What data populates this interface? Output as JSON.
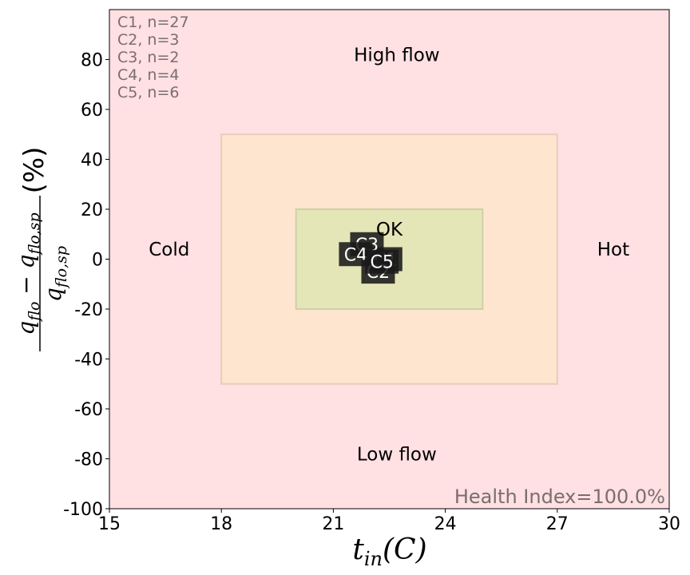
{
  "chart_data": {
    "type": "scatter",
    "xlabel": "t_in(C)",
    "ylabel": "(q_flo − q_flo,sp) / q_flo,sp (%)",
    "xlim": [
      15,
      30
    ],
    "ylim": [
      -100,
      100
    ],
    "x_ticks": [
      "15",
      "18",
      "21",
      "24",
      "27",
      "30"
    ],
    "y_ticks": [
      "80",
      "60",
      "40",
      "20",
      "0",
      "-20",
      "-40",
      "-60",
      "-80",
      "-100"
    ],
    "regions": [
      {
        "name": "outer",
        "x": [
          15,
          30
        ],
        "y": [
          -100,
          100
        ],
        "color": "#ffe0e3"
      },
      {
        "name": "middle",
        "x": [
          18,
          27
        ],
        "y": [
          -50,
          50
        ],
        "color": "#fde5cf"
      },
      {
        "name": "ok",
        "x": [
          20,
          25
        ],
        "y": [
          -20,
          20
        ],
        "color": "#e5e6b8"
      }
    ],
    "region_labels": [
      {
        "text": "High flow",
        "x": 22.7,
        "y": 82
      },
      {
        "text": "Low flow",
        "x": 22.7,
        "y": -78
      },
      {
        "text": "Cold",
        "x": 16.6,
        "y": 4
      },
      {
        "text": "Hot",
        "x": 28.5,
        "y": 4
      },
      {
        "text": "OK",
        "x": 22.5,
        "y": 12
      }
    ],
    "clusters": [
      {
        "label": "C1",
        "x": 22.4,
        "y": 0
      },
      {
        "label": "C3",
        "x": 21.9,
        "y": 6
      },
      {
        "label": "C4",
        "x": 21.6,
        "y": 2
      },
      {
        "label": "C2",
        "x": 22.2,
        "y": -5
      },
      {
        "label": "C5",
        "x": 22.3,
        "y": -1
      }
    ],
    "legend": [
      "C1, n=27",
      "C2, n=3",
      "C3, n=2",
      "C4, n=4",
      "C5, n=6"
    ],
    "annotation": "Health Index=100.0%"
  }
}
